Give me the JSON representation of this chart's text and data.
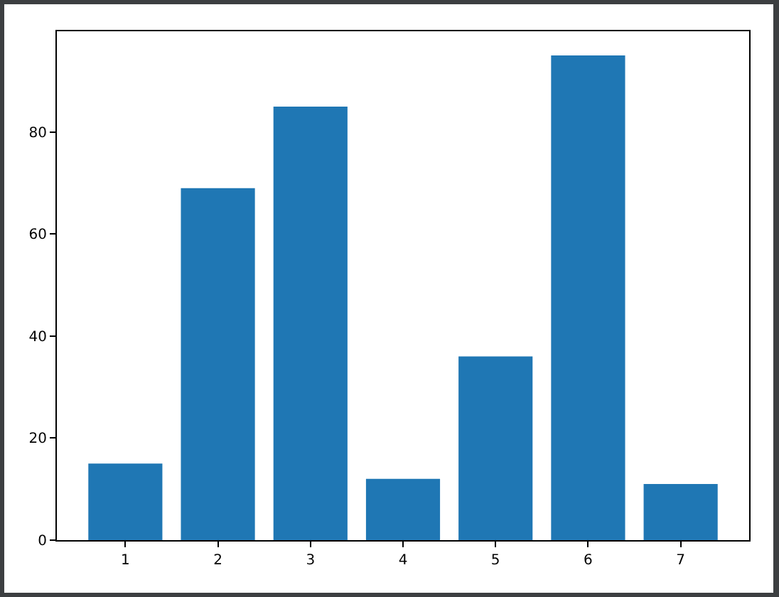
{
  "chart_data": {
    "type": "bar",
    "categories": [
      "1",
      "2",
      "3",
      "4",
      "5",
      "6",
      "7"
    ],
    "values": [
      15,
      69,
      85,
      12,
      36,
      95,
      11
    ],
    "color": "#1f77b4",
    "ylim": [
      0,
      99.75
    ],
    "yticks": [
      0,
      20,
      40,
      60,
      80
    ],
    "grid": false,
    "legend": false
  }
}
